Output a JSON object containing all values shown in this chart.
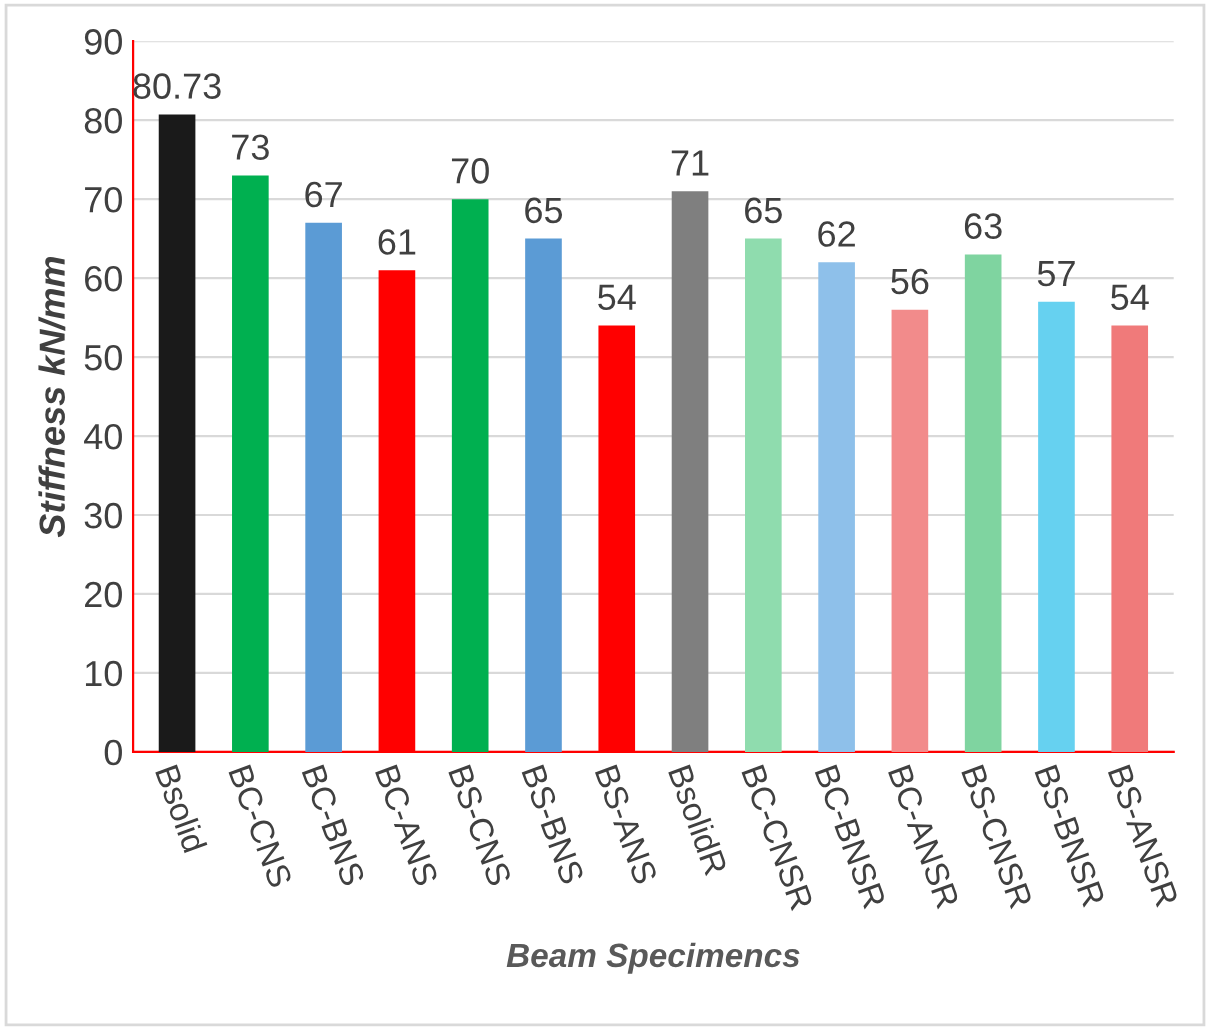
{
  "chart_data": {
    "type": "bar",
    "xlabel": "Beam Specimencs",
    "ylabel": "Stiffness kN/mm",
    "categories": [
      "Bsolid",
      "BC-CNS",
      "BC-BNS",
      "BC-ANS",
      "BS-CNS",
      "BS-BNS",
      "BS-ANS",
      "BsolidR",
      "BC-CNSR",
      "BC-BNSR",
      "BC-ANSR",
      "BS-CNSR",
      "BS-BNSR",
      "BS-ANSR"
    ],
    "values": [
      80.73,
      73,
      67,
      61,
      70,
      65,
      54,
      71,
      65,
      62,
      56,
      63,
      57,
      54
    ],
    "colors": [
      "#1a1a1a",
      "#00b050",
      "#5b9bd5",
      "#ff0000",
      "#00b050",
      "#5b9bd5",
      "#ff0000",
      "#7f7f7f",
      "#8fdcae",
      "#8ec0ea",
      "#f28b8b",
      "#7fd4a0",
      "#66d1f0",
      "#f07a7a"
    ],
    "ylim": [
      0,
      90
    ],
    "yticks": [
      0,
      10,
      20,
      30,
      40,
      50,
      60,
      70,
      80,
      90
    ],
    "grid": "y",
    "data_labels": true
  }
}
